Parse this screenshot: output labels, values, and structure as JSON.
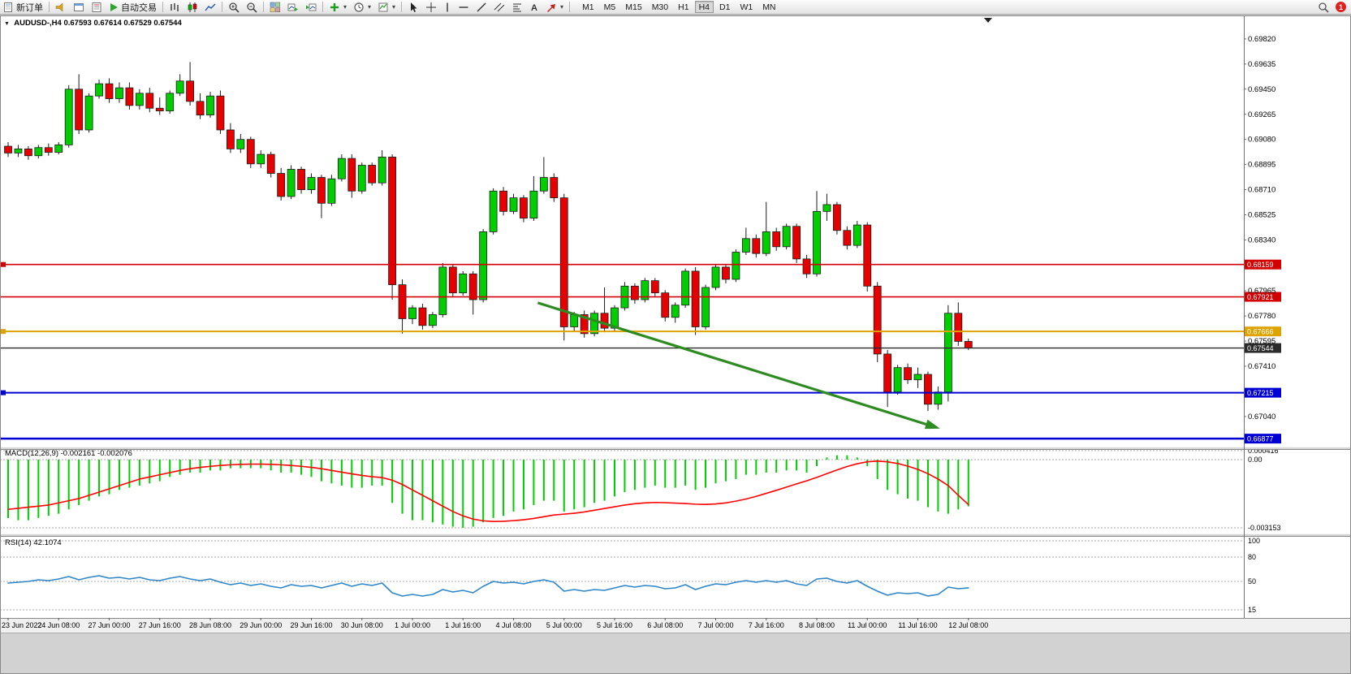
{
  "toolbar": {
    "new_order_label": "新订单",
    "auto_trading_label": "自动交易",
    "timeframes": [
      "M1",
      "M5",
      "M15",
      "M30",
      "H1",
      "H4",
      "D1",
      "W1",
      "MN"
    ],
    "active_timeframe": "H4",
    "notification_count": "1"
  },
  "chart": {
    "symbol_period": "AUDUSD-,H4",
    "ohlc_text": "0.67593 0.67614 0.67529 0.67544"
  },
  "macd": {
    "label": "MACD(12,26,9) -0.002161 -0.002076"
  },
  "rsi": {
    "label": "RSI(14) 42.1074"
  },
  "chart_data": {
    "type": "candlestick",
    "symbol": "AUDUSD",
    "period": "H4",
    "ohlc_current": {
      "open": 0.67593,
      "high": 0.67614,
      "low": 0.67529,
      "close": 0.67544
    },
    "x_labels": [
      "23 Jun 2022",
      "24 Jun 08:00",
      "27 Jun 00:00",
      "27 Jun 16:00",
      "28 Jun 08:00",
      "29 Jun 00:00",
      "29 Jun 16:00",
      "30 Jun 08:00",
      "1 Jul 00:00",
      "1 Jul 16:00",
      "4 Jul 08:00",
      "5 Jul 00:00",
      "5 Jul 16:00",
      "6 Jul 08:00",
      "7 Jul 00:00",
      "7 Jul 16:00",
      "8 Jul 08:00",
      "11 Jul 00:00",
      "11 Jul 16:00",
      "12 Jul 08:00"
    ],
    "x_label_step": 5,
    "price_axis": {
      "ylim": [
        0.66818,
        0.69993
      ],
      "labels": [
        {
          "text": "0.69820",
          "price": 0.6982
        },
        {
          "text": "0.69635",
          "price": 0.69635
        },
        {
          "text": "0.69450",
          "price": 0.6945
        },
        {
          "text": "0.69265",
          "price": 0.69265
        },
        {
          "text": "0.69080",
          "price": 0.6908
        },
        {
          "text": "0.68895",
          "price": 0.68895
        },
        {
          "text": "0.68710",
          "price": 0.6871
        },
        {
          "text": "0.68525",
          "price": 0.68525
        },
        {
          "text": "0.68340",
          "price": 0.6834
        },
        {
          "text": "0.67965",
          "price": 0.67965
        },
        {
          "text": "0.67780",
          "price": 0.6778
        },
        {
          "text": "0.67595",
          "price": 0.67595
        },
        {
          "text": "0.67410",
          "price": 0.6741
        },
        {
          "text": "0.67040",
          "price": 0.6704
        }
      ]
    },
    "hlines": [
      {
        "price": 0.68159,
        "label": "0.68159",
        "color": "#D40000",
        "width": 1.6,
        "left_marker": true
      },
      {
        "price": 0.67921,
        "label": "0.67921",
        "color": "#D40000",
        "width": 1.6,
        "left_marker": false
      },
      {
        "price": 0.67666,
        "label": "0.67666",
        "color": "#DFA300",
        "width": 2,
        "left_marker": true
      },
      {
        "price": 0.67544,
        "label": "0.67544",
        "color": "#2B2B2B",
        "width": 1.4,
        "left_marker": false
      },
      {
        "price": 0.67215,
        "label": "0.67215",
        "color": "#0000D4",
        "width": 2,
        "left_marker": true
      },
      {
        "price": 0.66877,
        "label": "0.66877",
        "color": "#0000D4",
        "width": 2.6,
        "left_marker": false
      }
    ],
    "arrow": {
      "from_index": 52.4,
      "from_price": 0.67877,
      "to_index": 91.2,
      "to_price": 0.66974,
      "color": "#2E8B22"
    },
    "candle_colors": {
      "up": "#00CE00",
      "down": "#E60000",
      "outline": "#1c1c1c"
    },
    "candles": [
      [
        0.6903,
        0.6906,
        0.6895,
        0.6898
      ],
      [
        0.6898,
        0.6904,
        0.6895,
        0.6901
      ],
      [
        0.6901,
        0.6903,
        0.6893,
        0.6896
      ],
      [
        0.6896,
        0.6904,
        0.6894,
        0.6902
      ],
      [
        0.6902,
        0.6905,
        0.6896,
        0.68985
      ],
      [
        0.68985,
        0.6906,
        0.6897,
        0.6904
      ],
      [
        0.6904,
        0.6948,
        0.6902,
        0.6945
      ],
      [
        0.6945,
        0.6956,
        0.6912,
        0.6915
      ],
      [
        0.6915,
        0.6942,
        0.6913,
        0.694
      ],
      [
        0.694,
        0.6952,
        0.6938,
        0.6949
      ],
      [
        0.6949,
        0.6953,
        0.6935,
        0.6938
      ],
      [
        0.6938,
        0.695,
        0.6935,
        0.6946
      ],
      [
        0.6946,
        0.695,
        0.693,
        0.6933
      ],
      [
        0.6933,
        0.6945,
        0.693,
        0.6942
      ],
      [
        0.6942,
        0.6946,
        0.6928,
        0.6931
      ],
      [
        0.6931,
        0.6939,
        0.6926,
        0.6929
      ],
      [
        0.6929,
        0.6944,
        0.6927,
        0.6942
      ],
      [
        0.6942,
        0.6956,
        0.694,
        0.6951
      ],
      [
        0.6951,
        0.6965,
        0.6933,
        0.6936
      ],
      [
        0.6936,
        0.6942,
        0.6923,
        0.6926
      ],
      [
        0.6926,
        0.6943,
        0.6924,
        0.694
      ],
      [
        0.694,
        0.6944,
        0.6912,
        0.6915
      ],
      [
        0.6915,
        0.692,
        0.6898,
        0.6901
      ],
      [
        0.6901,
        0.6912,
        0.6898,
        0.6908
      ],
      [
        0.6908,
        0.691,
        0.6887,
        0.689
      ],
      [
        0.689,
        0.69,
        0.6887,
        0.6897
      ],
      [
        0.6897,
        0.6899,
        0.688,
        0.6883
      ],
      [
        0.6883,
        0.6887,
        0.6863,
        0.6866
      ],
      [
        0.6866,
        0.6889,
        0.6864,
        0.6886
      ],
      [
        0.6886,
        0.6888,
        0.6868,
        0.6871
      ],
      [
        0.6871,
        0.6883,
        0.6868,
        0.688
      ],
      [
        0.688,
        0.6882,
        0.685,
        0.6861
      ],
      [
        0.6861,
        0.6882,
        0.6859,
        0.6879
      ],
      [
        0.6879,
        0.6897,
        0.6877,
        0.6894
      ],
      [
        0.6894,
        0.6897,
        0.6865,
        0.687
      ],
      [
        0.687,
        0.6891,
        0.6868,
        0.6889
      ],
      [
        0.6889,
        0.6891,
        0.6874,
        0.6876
      ],
      [
        0.6876,
        0.69,
        0.6874,
        0.6895
      ],
      [
        0.6895,
        0.6897,
        0.679,
        0.6801
      ],
      [
        0.6801,
        0.6805,
        0.6765,
        0.6776
      ],
      [
        0.6776,
        0.6786,
        0.6772,
        0.6784
      ],
      [
        0.6784,
        0.6787,
        0.6768,
        0.6771
      ],
      [
        0.6771,
        0.6781,
        0.6769,
        0.6779
      ],
      [
        0.6779,
        0.6817,
        0.6777,
        0.6814
      ],
      [
        0.6814,
        0.6816,
        0.6792,
        0.6795
      ],
      [
        0.6795,
        0.6811,
        0.6793,
        0.6809
      ],
      [
        0.6809,
        0.6811,
        0.6779,
        0.679
      ],
      [
        0.679,
        0.6842,
        0.6788,
        0.684
      ],
      [
        0.684,
        0.6872,
        0.6838,
        0.687
      ],
      [
        0.687,
        0.6873,
        0.6852,
        0.6855
      ],
      [
        0.6855,
        0.6868,
        0.6853,
        0.6865
      ],
      [
        0.6865,
        0.6867,
        0.6847,
        0.685
      ],
      [
        0.685,
        0.6881,
        0.6848,
        0.687
      ],
      [
        0.687,
        0.6895,
        0.6868,
        0.688
      ],
      [
        0.688,
        0.6883,
        0.6862,
        0.6865
      ],
      [
        0.6865,
        0.6868,
        0.676,
        0.677
      ],
      [
        0.677,
        0.6781,
        0.6767,
        0.6779
      ],
      [
        0.6779,
        0.6782,
        0.6762,
        0.6765
      ],
      [
        0.6765,
        0.6782,
        0.6763,
        0.678
      ],
      [
        0.678,
        0.6799,
        0.6766,
        0.6769
      ],
      [
        0.6769,
        0.6786,
        0.6767,
        0.6784
      ],
      [
        0.6784,
        0.6803,
        0.6782,
        0.68
      ],
      [
        0.68,
        0.6802,
        0.6787,
        0.679
      ],
      [
        0.679,
        0.6806,
        0.6788,
        0.6804
      ],
      [
        0.6804,
        0.6806,
        0.6792,
        0.6795
      ],
      [
        0.6795,
        0.6797,
        0.6774,
        0.6777
      ],
      [
        0.6777,
        0.6788,
        0.6773,
        0.6786
      ],
      [
        0.6786,
        0.6813,
        0.6784,
        0.6811
      ],
      [
        0.6811,
        0.6814,
        0.6764,
        0.677
      ],
      [
        0.677,
        0.6801,
        0.6768,
        0.6799
      ],
      [
        0.6799,
        0.6816,
        0.6797,
        0.6814
      ],
      [
        0.6814,
        0.6816,
        0.6802,
        0.6805
      ],
      [
        0.6805,
        0.6827,
        0.6803,
        0.6825
      ],
      [
        0.6825,
        0.6843,
        0.6823,
        0.6835
      ],
      [
        0.6835,
        0.6838,
        0.6821,
        0.6824
      ],
      [
        0.6824,
        0.6862,
        0.6822,
        0.684
      ],
      [
        0.684,
        0.6843,
        0.6826,
        0.6829
      ],
      [
        0.6829,
        0.6846,
        0.6827,
        0.6844
      ],
      [
        0.6844,
        0.6846,
        0.6817,
        0.682
      ],
      [
        0.682,
        0.6823,
        0.6806,
        0.6809
      ],
      [
        0.6809,
        0.687,
        0.6807,
        0.6855
      ],
      [
        0.6855,
        0.6868,
        0.6848,
        0.686
      ],
      [
        0.686,
        0.6862,
        0.6838,
        0.6841
      ],
      [
        0.6841,
        0.6844,
        0.6827,
        0.683
      ],
      [
        0.683,
        0.6848,
        0.6828,
        0.6845
      ],
      [
        0.6845,
        0.6847,
        0.6796,
        0.68
      ],
      [
        0.68,
        0.6803,
        0.6744,
        0.675
      ],
      [
        0.675,
        0.6753,
        0.6711,
        0.6722
      ],
      [
        0.6722,
        0.6742,
        0.672,
        0.674
      ],
      [
        0.674,
        0.6743,
        0.6728,
        0.6731
      ],
      [
        0.6731,
        0.674,
        0.6725,
        0.6735
      ],
      [
        0.6735,
        0.6737,
        0.6708,
        0.6713
      ],
      [
        0.6713,
        0.6726,
        0.6709,
        0.6722
      ],
      [
        0.6722,
        0.6786,
        0.6715,
        0.678
      ],
      [
        0.678,
        0.6788,
        0.6756,
        0.67593
      ],
      [
        0.67593,
        0.67614,
        0.67529,
        0.67544
      ]
    ],
    "macd": {
      "title": "MACD(12,26,9)",
      "main_value": -0.002161,
      "signal_value": -0.002076,
      "ylim": [
        -0.003416,
        0.00045
      ],
      "value_scale": 0.0001,
      "colors": {
        "histogram": "#00CE00",
        "signal": "#FF0000"
      },
      "axis_labels": [
        {
          "text": "0.000416",
          "value": 0.000416
        },
        {
          "text": "0.00",
          "value": 0.0
        },
        {
          "text": "-0.003153",
          "value": -0.003153
        }
      ],
      "histogram": [
        -27,
        -28,
        -28,
        -27,
        -26,
        -25,
        -23,
        -21,
        -19,
        -17,
        -16,
        -14,
        -13,
        -12,
        -11,
        -10,
        -8,
        -7,
        -6,
        -6,
        -5,
        -5,
        -4,
        -4,
        -4,
        -4,
        -5,
        -6,
        -6,
        -7,
        -8,
        -10,
        -11,
        -12,
        -13,
        -13,
        -12,
        -12,
        -20,
        -25,
        -28,
        -28,
        -29,
        -30,
        -31,
        -31.5,
        -31,
        -29,
        -27,
        -26,
        -24,
        -23,
        -21,
        -19,
        -19,
        -24,
        -23,
        -22,
        -20,
        -19,
        -17,
        -15,
        -14,
        -13,
        -12,
        -13,
        -13,
        -12,
        -14,
        -13,
        -11,
        -10,
        -9,
        -7,
        -7,
        -6,
        -6,
        -5,
        -5,
        -6,
        -3,
        1,
        2,
        2,
        1,
        -3,
        -9,
        -14,
        -16,
        -18,
        -19,
        -22,
        -24,
        -25,
        -23,
        -21.61
      ],
      "signal": [
        -23,
        -22.5,
        -22,
        -21.5,
        -21,
        -20,
        -19,
        -18,
        -16.5,
        -15,
        -13.5,
        -12,
        -10.5,
        -9,
        -8,
        -7,
        -6,
        -5,
        -4.2,
        -3.6,
        -3.1,
        -2.7,
        -2.4,
        -2.2,
        -2.1,
        -2.1,
        -2.2,
        -2.4,
        -2.7,
        -3.1,
        -3.6,
        -4.2,
        -5,
        -5.8,
        -6.6,
        -7.3,
        -7.9,
        -8.3,
        -9.5,
        -11.5,
        -14,
        -16.5,
        -19,
        -21.5,
        -24,
        -26,
        -27.5,
        -28.3,
        -28.6,
        -28.5,
        -28.2,
        -27.8,
        -27.2,
        -26.4,
        -25.6,
        -25.2,
        -24.8,
        -24.2,
        -23.4,
        -22.6,
        -21.8,
        -21,
        -20.4,
        -20,
        -19.8,
        -19.9,
        -20.1,
        -20.3,
        -20.6,
        -20.7,
        -20.5,
        -20,
        -19.2,
        -18.2,
        -17,
        -15.6,
        -14.2,
        -12.7,
        -11.2,
        -9.8,
        -8.2,
        -6.5,
        -4.8,
        -3.2,
        -1.9,
        -1.0,
        -0.7,
        -1.0,
        -1.8,
        -3.0,
        -4.5,
        -6.5,
        -9.0,
        -12.0,
        -16.5,
        -20.76
      ]
    },
    "rsi": {
      "title": "RSI(14)",
      "value": 42.1074,
      "ylim": [
        5,
        105
      ],
      "color": "#2E86C8",
      "levels": [
        {
          "text": "100",
          "value": 100
        },
        {
          "text": "80",
          "value": 80
        },
        {
          "text": "50",
          "value": 50
        },
        {
          "text": "15",
          "value": 15
        }
      ],
      "values": [
        48,
        49,
        50,
        52,
        51,
        53,
        56,
        52,
        55,
        57,
        54,
        55,
        53,
        55,
        52,
        51,
        54,
        56,
        53,
        51,
        53,
        49,
        46,
        48,
        45,
        47,
        44,
        42,
        46,
        44,
        45,
        42,
        45,
        48,
        44,
        47,
        45,
        48,
        36,
        32,
        34,
        32,
        34,
        40,
        37,
        39,
        36,
        44,
        50,
        48,
        49,
        47,
        50,
        52,
        49,
        38,
        40,
        38,
        40,
        39,
        42,
        45,
        43,
        45,
        44,
        41,
        42,
        46,
        40,
        44,
        47,
        46,
        49,
        51,
        49,
        51,
        49,
        51,
        47,
        45,
        53,
        54,
        50,
        48,
        51,
        44,
        38,
        33,
        36,
        35,
        36,
        32,
        34,
        43,
        41,
        42.1
      ]
    }
  }
}
